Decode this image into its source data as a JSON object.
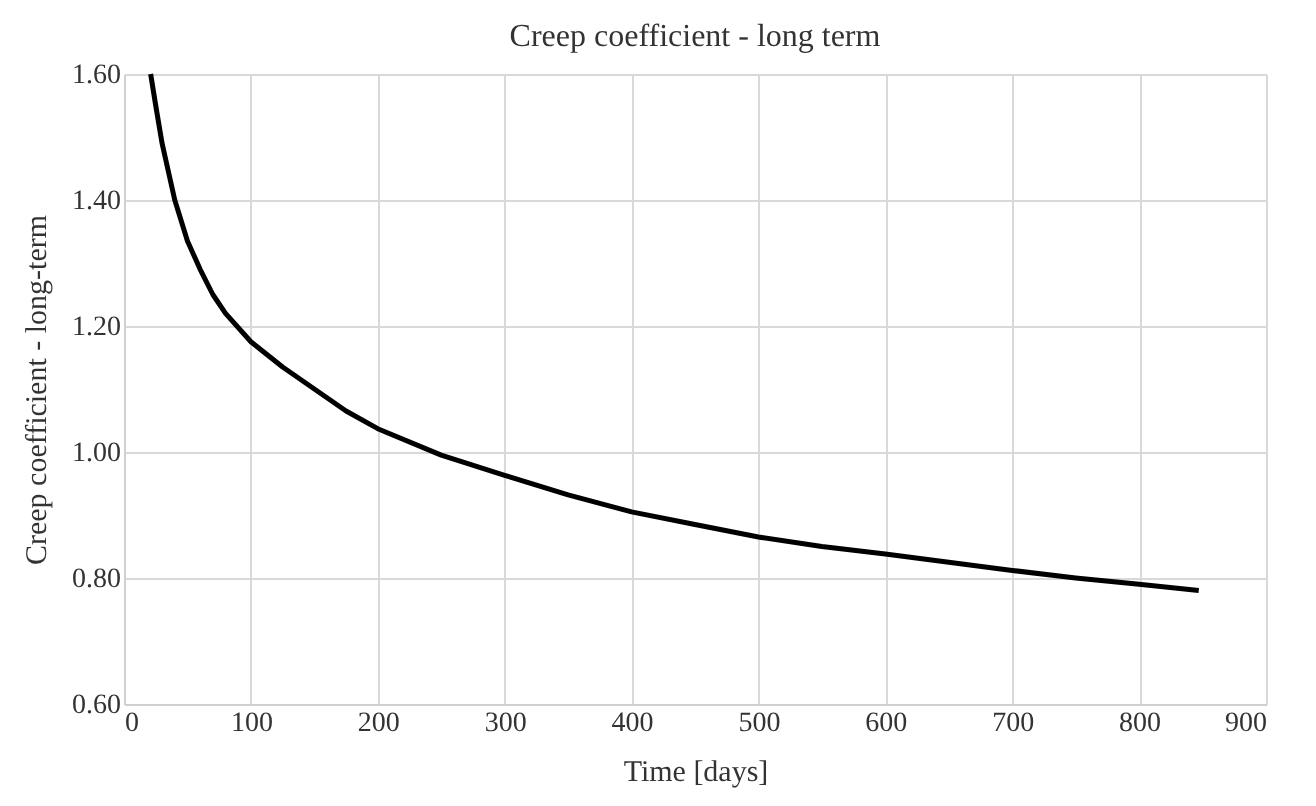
{
  "chart_data": {
    "type": "line",
    "title": "Creep coefficient - long term",
    "xlabel": "Time [days]",
    "ylabel": "Creep coefficient - long-term",
    "x": [
      21,
      25,
      30,
      40,
      50,
      60,
      70,
      80,
      100,
      125,
      150,
      175,
      200,
      250,
      300,
      350,
      400,
      450,
      500,
      550,
      600,
      650,
      700,
      750,
      800,
      847
    ],
    "series": [
      {
        "color": "#000000",
        "values": [
          1.6,
          1.55,
          1.49,
          1.4,
          1.335,
          1.29,
          1.25,
          1.22,
          1.175,
          1.135,
          1.1,
          1.065,
          1.037,
          0.995,
          0.963,
          0.932,
          0.905,
          0.885,
          0.865,
          0.85,
          0.838,
          0.825,
          0.812,
          0.8,
          0.79,
          0.78
        ]
      }
    ],
    "xlim": [
      0,
      900
    ],
    "xticks": [
      0,
      100,
      200,
      300,
      400,
      500,
      600,
      700,
      800,
      900
    ],
    "ylim": [
      0.6,
      1.6
    ],
    "yticks": [
      {
        "value": 0.6,
        "label": "0.60"
      },
      {
        "value": 0.8,
        "label": "0.80"
      },
      {
        "value": 1.0,
        "label": "1.00"
      },
      {
        "value": 1.2,
        "label": "1.20"
      },
      {
        "value": 1.4,
        "label": "1.40"
      },
      {
        "value": 1.6,
        "label": "1.60"
      }
    ],
    "grid": true,
    "marker": "none",
    "line_style": "solid"
  }
}
